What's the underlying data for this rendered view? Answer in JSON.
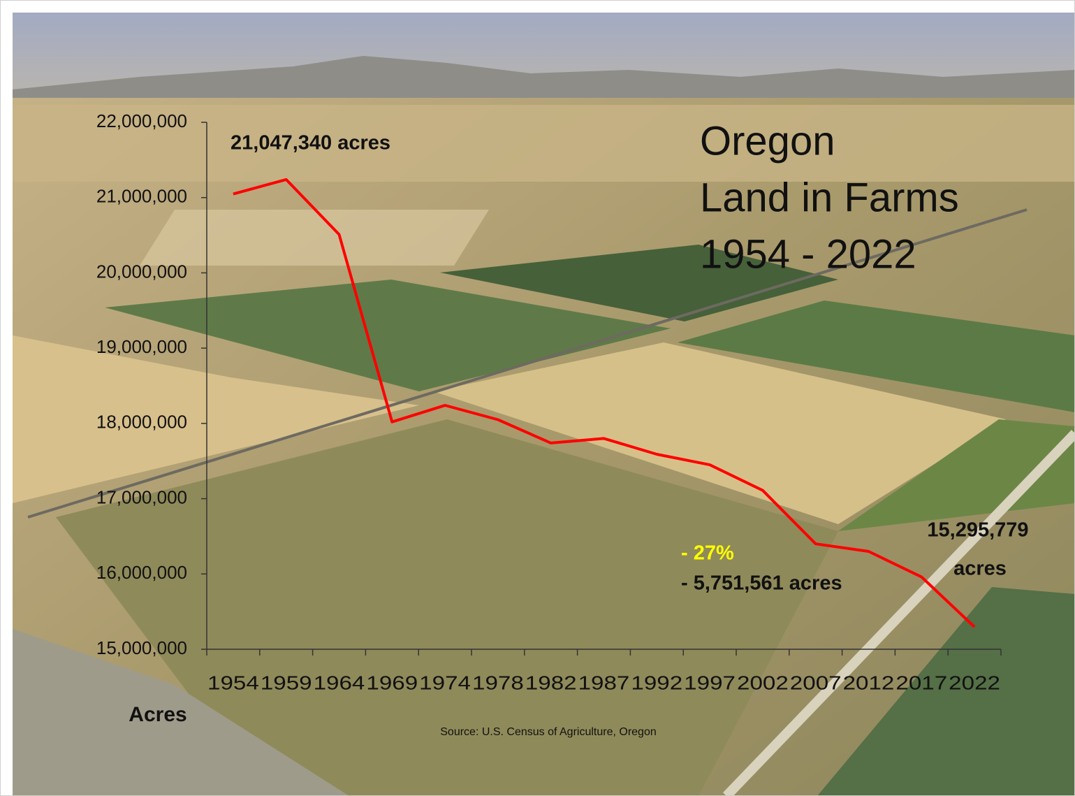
{
  "chart_data": {
    "type": "line",
    "title": [
      "Oregon",
      "Land in Farms",
      "1954 - 2022"
    ],
    "y_label": "Acres",
    "source": "Source: U.S. Census of Agriculture, Oregon",
    "categories": [
      "1954",
      "1959",
      "1964",
      "1969",
      "1974",
      "1978",
      "1982",
      "1987",
      "1992",
      "1997",
      "2002",
      "2007",
      "2012",
      "2017",
      "2022"
    ],
    "series": [
      {
        "color": "#ff0000",
        "values": [
          21047340,
          21240000,
          20510000,
          18020000,
          18240000,
          18050000,
          17740000,
          17800000,
          17590000,
          17450000,
          17110000,
          16400000,
          16300000,
          15960000,
          15295779
        ]
      }
    ],
    "ylim": [
      15000000,
      22000000
    ],
    "yticks": [
      {
        "value": 15000000,
        "label": "15,000,000"
      },
      {
        "value": 16000000,
        "label": "16,000,000"
      },
      {
        "value": 17000000,
        "label": "17,000,000"
      },
      {
        "value": 18000000,
        "label": "18,000,000"
      },
      {
        "value": 19000000,
        "label": "19,000,000"
      },
      {
        "value": 20000000,
        "label": "20,000,000"
      },
      {
        "value": 21000000,
        "label": "21,000,000"
      },
      {
        "value": 22000000,
        "label": "22,000,000"
      }
    ],
    "annotations": [
      {
        "text": "21,047,340 acres"
      },
      {
        "text": "15,295,779"
      },
      {
        "text": "acres"
      },
      {
        "text": "- 27%",
        "color": "#ffff00"
      },
      {
        "text": "- 5,751,561 acres"
      }
    ]
  }
}
